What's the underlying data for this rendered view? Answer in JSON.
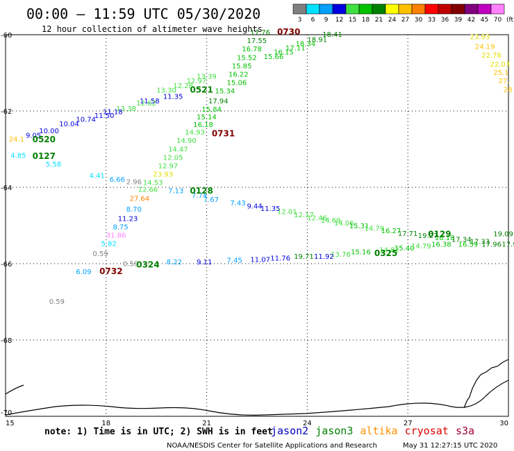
{
  "header": {
    "title": "00:00 – 11:59 UTC 05/30/2020",
    "subtitle": "12 hour collection of altimeter wave heights"
  },
  "legend": {
    "bins": [
      {
        "label": "3",
        "color": "#808080"
      },
      {
        "label": "6",
        "color": "#00e0ff"
      },
      {
        "label": "9",
        "color": "#00a0ff"
      },
      {
        "label": "12",
        "color": "#0000e0"
      },
      {
        "label": "15",
        "color": "#40e040"
      },
      {
        "label": "18",
        "color": "#00c000"
      },
      {
        "label": "21",
        "color": "#008000"
      },
      {
        "label": "24",
        "color": "#ffff00"
      },
      {
        "label": "27",
        "color": "#ffc000"
      },
      {
        "label": "30",
        "color": "#ff8000"
      },
      {
        "label": "33",
        "color": "#ff0000"
      },
      {
        "label": "36",
        "color": "#c00000"
      },
      {
        "label": "39",
        "color": "#800000"
      },
      {
        "label": "42",
        "color": "#800080"
      },
      {
        "label": "45",
        "color": "#c000c0"
      },
      {
        "label": "70",
        "color": "#ff80ff"
      }
    ],
    "unit": "(ft)"
  },
  "axes": {
    "x_ticks": [
      "15",
      "18",
      "21",
      "24",
      "27",
      "30"
    ],
    "y_ticks": [
      "-60",
      "-62",
      "-64",
      "-66",
      "-68",
      "-70"
    ]
  },
  "map_view": {
    "lon_range": [
      15,
      30
    ],
    "lat_range": [
      -70,
      -60
    ]
  },
  "observations": [
    {
      "text": "17.76",
      "lon": 22.3,
      "lat": -60.0,
      "color": "#008000"
    },
    {
      "text": "17.55",
      "lon": 22.2,
      "lat": -60.22,
      "color": "#008000"
    },
    {
      "text": "16.78",
      "lon": 22.05,
      "lat": -60.44,
      "color": "#00c000"
    },
    {
      "text": "15.52",
      "lon": 21.9,
      "lat": -60.66,
      "color": "#00c000"
    },
    {
      "text": "15.85",
      "lon": 21.75,
      "lat": -60.88,
      "color": "#00c000"
    },
    {
      "text": "16.22",
      "lon": 21.65,
      "lat": -61.1,
      "color": "#00c000"
    },
    {
      "text": "15.06",
      "lon": 21.6,
      "lat": -61.32,
      "color": "#00c000"
    },
    {
      "text": "15.34",
      "lon": 21.25,
      "lat": -61.54,
      "color": "#00c000"
    },
    {
      "text": "17.94",
      "lon": 21.05,
      "lat": -61.8,
      "color": "#008000"
    },
    {
      "text": "15.84",
      "lon": 20.85,
      "lat": -62.02,
      "color": "#00c000"
    },
    {
      "text": "15.14",
      "lon": 20.7,
      "lat": -62.22,
      "color": "#00c000"
    },
    {
      "text": "16.18",
      "lon": 20.6,
      "lat": -62.42,
      "color": "#00c000"
    },
    {
      "text": "14.93",
      "lon": 20.35,
      "lat": -62.62,
      "color": "#40e040"
    },
    {
      "text": "14.90",
      "lon": 20.1,
      "lat": -62.84,
      "color": "#40e040"
    },
    {
      "text": "14.47",
      "lon": 19.85,
      "lat": -63.06,
      "color": "#40e040"
    },
    {
      "text": "12.05",
      "lon": 19.7,
      "lat": -63.28,
      "color": "#40e040"
    },
    {
      "text": "12.97",
      "lon": 19.55,
      "lat": -63.5,
      "color": "#40e040"
    },
    {
      "text": "23.93",
      "lon": 19.4,
      "lat": -63.72,
      "color": "#e0e000"
    },
    {
      "text": "14.53",
      "lon": 19.1,
      "lat": -63.94,
      "color": "#40e040"
    },
    {
      "text": "12.66",
      "lon": 18.95,
      "lat": -64.12,
      "color": "#40e040"
    },
    {
      "text": "27.64",
      "lon": 18.7,
      "lat": -64.35,
      "color": "#ff8000"
    },
    {
      "text": "8.70",
      "lon": 18.6,
      "lat": -64.64,
      "color": "#00a0ff"
    },
    {
      "text": "11.23",
      "lon": 18.35,
      "lat": -64.88,
      "color": "#0000e0"
    },
    {
      "text": "8.75",
      "lon": 18.2,
      "lat": -65.1,
      "color": "#00a0ff"
    },
    {
      "text": "31.86",
      "lon": 18.0,
      "lat": -65.32,
      "color": "#ff80ff"
    },
    {
      "text": "5.82",
      "lon": 17.85,
      "lat": -65.54,
      "color": "#00e0ff"
    },
    {
      "text": "0.59",
      "lon": 17.6,
      "lat": -65.8,
      "color": "#808080"
    },
    {
      "text": "6.09",
      "lon": 17.1,
      "lat": -66.27,
      "color": "#00a0ff"
    },
    {
      "text": "0.59",
      "lon": 16.3,
      "lat": -67.05,
      "color": "#808080"
    },
    {
      "text": "18.41",
      "lon": 24.45,
      "lat": -60.05,
      "color": "#008000"
    },
    {
      "text": "18.91",
      "lon": 24.0,
      "lat": -60.19,
      "color": "#008000"
    },
    {
      "text": "18.34",
      "lon": 23.65,
      "lat": -60.3,
      "color": "#00c000"
    },
    {
      "text": "17.11",
      "lon": 23.35,
      "lat": -60.41,
      "color": "#00c000"
    },
    {
      "text": "16.15",
      "lon": 23.0,
      "lat": -60.52,
      "color": "#00c000"
    },
    {
      "text": "15.66",
      "lon": 22.7,
      "lat": -60.64,
      "color": "#00c000"
    },
    {
      "text": "13.39",
      "lon": 20.7,
      "lat": -61.15,
      "color": "#40e040"
    },
    {
      "text": "12.97",
      "lon": 20.4,
      "lat": -61.27,
      "color": "#40e040"
    },
    {
      "text": "12.28",
      "lon": 20.0,
      "lat": -61.4,
      "color": "#40e040"
    },
    {
      "text": "13.30",
      "lon": 19.5,
      "lat": -61.52,
      "color": "#40e040"
    },
    {
      "text": "11.35",
      "lon": 19.7,
      "lat": -61.68,
      "color": "#0000e0"
    },
    {
      "text": "11.58",
      "lon": 19.0,
      "lat": -61.8,
      "color": "#0000e0"
    },
    {
      "text": "12.62",
      "lon": 18.9,
      "lat": -61.85,
      "color": "#40e040"
    },
    {
      "text": "13.38",
      "lon": 18.3,
      "lat": -62.0,
      "color": "#40e040"
    },
    {
      "text": "11.18",
      "lon": 17.9,
      "lat": -62.08,
      "color": "#0000e0"
    },
    {
      "text": "11.50",
      "lon": 17.65,
      "lat": -62.18,
      "color": "#0000e0"
    },
    {
      "text": "10.74",
      "lon": 17.1,
      "lat": -62.28,
      "color": "#0000e0"
    },
    {
      "text": "10.04",
      "lon": 16.6,
      "lat": -62.4,
      "color": "#0000e0"
    },
    {
      "text": "10.00",
      "lon": 16.0,
      "lat": -62.58,
      "color": "#0000e0"
    },
    {
      "text": "9.05",
      "lon": 15.6,
      "lat": -62.7,
      "color": "#0000e0"
    },
    {
      "text": "24.1",
      "lon": 15.1,
      "lat": -62.8,
      "color": "#ffc000"
    },
    {
      "text": "4.85",
      "lon": 15.15,
      "lat": -63.23,
      "color": "#00e0ff"
    },
    {
      "text": "5.58",
      "lon": 16.2,
      "lat": -63.45,
      "color": "#00e0ff"
    },
    {
      "text": "4.41",
      "lon": 17.5,
      "lat": -63.75,
      "color": "#00e0ff"
    },
    {
      "text": "6.66",
      "lon": 18.1,
      "lat": -63.85,
      "color": "#00a0ff"
    },
    {
      "text": "2.96",
      "lon": 18.6,
      "lat": -63.92,
      "color": "#808080"
    },
    {
      "text": "7.13",
      "lon": 19.85,
      "lat": -64.15,
      "color": "#00a0ff"
    },
    {
      "text": "7.74",
      "lon": 20.55,
      "lat": -64.27,
      "color": "#00a0ff"
    },
    {
      "text": "7.67",
      "lon": 20.9,
      "lat": -64.38,
      "color": "#00a0ff"
    },
    {
      "text": "7.43",
      "lon": 21.7,
      "lat": -64.47,
      "color": "#00a0ff"
    },
    {
      "text": "9.44",
      "lon": 22.2,
      "lat": -64.55,
      "color": "#0000e0"
    },
    {
      "text": "11.35",
      "lon": 22.6,
      "lat": -64.62,
      "color": "#0000e0"
    },
    {
      "text": "12.01",
      "lon": 23.1,
      "lat": -64.7,
      "color": "#40e040"
    },
    {
      "text": "12.17",
      "lon": 23.6,
      "lat": -64.78,
      "color": "#40e040"
    },
    {
      "text": "12.46",
      "lon": 24.0,
      "lat": -64.86,
      "color": "#40e040"
    },
    {
      "text": "14.69",
      "lon": 24.4,
      "lat": -64.93,
      "color": "#40e040"
    },
    {
      "text": "14.06",
      "lon": 24.8,
      "lat": -65.0,
      "color": "#40e040"
    },
    {
      "text": "15.31",
      "lon": 25.25,
      "lat": -65.07,
      "color": "#00c000"
    },
    {
      "text": "14.79",
      "lon": 25.7,
      "lat": -65.14,
      "color": "#40e040"
    },
    {
      "text": "16.27",
      "lon": 26.2,
      "lat": -65.2,
      "color": "#00c000"
    },
    {
      "text": "17.71",
      "lon": 26.7,
      "lat": -65.27,
      "color": "#008000"
    },
    {
      "text": "19.27",
      "lon": 27.3,
      "lat": -65.33,
      "color": "#008000"
    },
    {
      "text": "16.18",
      "lon": 27.8,
      "lat": -65.38,
      "color": "#00c000"
    },
    {
      "text": "17.34",
      "lon": 28.3,
      "lat": -65.43,
      "color": "#008000"
    },
    {
      "text": "17.33",
      "lon": 28.85,
      "lat": -65.48,
      "color": "#008000"
    },
    {
      "text": "19.09",
      "lon": 29.55,
      "lat": -65.28,
      "color": "#008000"
    },
    {
      "text": "17.96",
      "lon": 29.2,
      "lat": -65.55,
      "color": "#008000"
    },
    {
      "text": "17.9",
      "lon": 29.8,
      "lat": -65.55,
      "color": "#008000"
    },
    {
      "text": "16.38",
      "lon": 27.7,
      "lat": -65.55,
      "color": "#00c000"
    },
    {
      "text": "16.59",
      "lon": 28.5,
      "lat": -65.55,
      "color": "#00c000"
    },
    {
      "text": "15.40",
      "lon": 26.6,
      "lat": -65.65,
      "color": "#00c000"
    },
    {
      "text": "14.79",
      "lon": 27.1,
      "lat": -65.6,
      "color": "#40e040"
    },
    {
      "text": "15.16",
      "lon": 25.3,
      "lat": -65.75,
      "color": "#00c000"
    },
    {
      "text": "14.82",
      "lon": 26.15,
      "lat": -65.7,
      "color": "#40e040"
    },
    {
      "text": "13.76",
      "lon": 24.7,
      "lat": -65.82,
      "color": "#40e040"
    },
    {
      "text": "11.92",
      "lon": 24.2,
      "lat": -65.87,
      "color": "#0000e0"
    },
    {
      "text": "19.71",
      "lon": 23.6,
      "lat": -65.87,
      "color": "#008000"
    },
    {
      "text": "11.76",
      "lon": 22.9,
      "lat": -65.92,
      "color": "#0000e0"
    },
    {
      "text": "11.07",
      "lon": 22.3,
      "lat": -65.95,
      "color": "#0000e0"
    },
    {
      "text": "7.45",
      "lon": 21.6,
      "lat": -65.97,
      "color": "#00a0ff"
    },
    {
      "text": "9.11",
      "lon": 20.7,
      "lat": -66.02,
      "color": "#0000e0"
    },
    {
      "text": "8.22",
      "lon": 19.8,
      "lat": -66.02,
      "color": "#00a0ff"
    },
    {
      "text": "0.59",
      "lon": 18.5,
      "lat": -66.06,
      "color": "#808080"
    },
    {
      "text": "23.93",
      "lon": 28.85,
      "lat": -60.12,
      "color": "#e0e000"
    },
    {
      "text": "24.19",
      "lon": 29.0,
      "lat": -60.37,
      "color": "#ffc000"
    },
    {
      "text": "22.76",
      "lon": 29.2,
      "lat": -60.6,
      "color": "#e0e000"
    },
    {
      "text": "22.03",
      "lon": 29.45,
      "lat": -60.84,
      "color": "#e0e000"
    },
    {
      "text": "25.1",
      "lon": 29.55,
      "lat": -61.05,
      "color": "#ffc000"
    },
    {
      "text": "27.",
      "lon": 29.7,
      "lat": -61.27,
      "color": "#ffc000"
    },
    {
      "text": "28",
      "lon": 29.85,
      "lat": -61.5,
      "color": "#ffc000"
    }
  ],
  "time_labels": [
    {
      "text": "0730",
      "lon": 23.1,
      "lat": -60.0,
      "color": "#800000"
    },
    {
      "text": "0521",
      "lon": 20.5,
      "lat": -61.52,
      "color": "#008000"
    },
    {
      "text": "0731",
      "lon": 21.15,
      "lat": -62.66,
      "color": "#800000"
    },
    {
      "text": "0520",
      "lon": 15.8,
      "lat": -62.82,
      "color": "#008000"
    },
    {
      "text": "0127",
      "lon": 15.8,
      "lat": -63.25,
      "color": "#008000"
    },
    {
      "text": "0128",
      "lon": 20.5,
      "lat": -64.16,
      "color": "#008000"
    },
    {
      "text": "0129",
      "lon": 27.6,
      "lat": -65.3,
      "color": "#008000"
    },
    {
      "text": "0325",
      "lon": 26.0,
      "lat": -65.8,
      "color": "#008000"
    },
    {
      "text": "0324",
      "lon": 18.9,
      "lat": -66.1,
      "color": "#008000"
    },
    {
      "text": "0732",
      "lon": 17.8,
      "lat": -66.27,
      "color": "#800000"
    }
  ],
  "footer": {
    "note": "note: 1) Time is in UTC; 2) SWH is in feet",
    "satellites": [
      {
        "name": "jason2",
        "color": "#0000c0"
      },
      {
        "name": "jason3",
        "color": "#008000"
      },
      {
        "name": "altika",
        "color": "#ff9000"
      },
      {
        "name": "cryosat",
        "color": "#e00000"
      },
      {
        "name": "s3a",
        "color": "#a00030"
      }
    ],
    "credit": "NOAA/NESDIS Center for Satellite Applications and Research",
    "timestamp": "May 31 12:27:15 UTC 2020"
  }
}
